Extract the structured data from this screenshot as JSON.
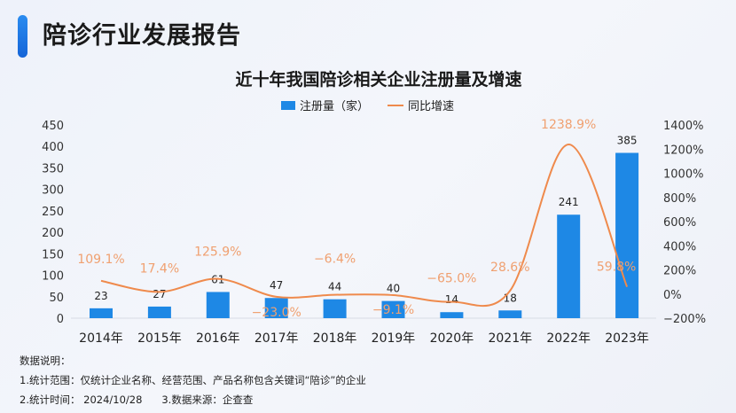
{
  "page": {
    "title": "陪诊行业发展报告",
    "accent_color": "#1e7ae6"
  },
  "chart_data": {
    "type": "bar+line",
    "title": "近十年我国陪诊相关企业注册量及增速",
    "legend_position": "top",
    "categories": [
      "2014年",
      "2015年",
      "2016年",
      "2017年",
      "2018年",
      "2019年",
      "2020年",
      "2021年",
      "2022年",
      "2023年"
    ],
    "series": [
      {
        "name": "注册量（家）",
        "type": "bar",
        "axis": "left",
        "color": "#1e88e5",
        "values": [
          23,
          27,
          61,
          47,
          44,
          40,
          14,
          18,
          241,
          385
        ],
        "labels": [
          "23",
          "27",
          "61",
          "47",
          "44",
          "40",
          "14",
          "18",
          "241",
          "385"
        ]
      },
      {
        "name": "同比增速",
        "type": "line",
        "axis": "right",
        "color": "#ef8a4c",
        "values": [
          109.1,
          17.4,
          125.9,
          -23.0,
          -6.4,
          -9.1,
          -65.0,
          28.6,
          1238.9,
          59.8
        ],
        "labels": [
          "109.1%",
          "17.4%",
          "125.9%",
          "−23.0%",
          "−6.4%",
          "−9.1%",
          "−65.0%",
          "28.6%",
          "1238.9%",
          "59.8%"
        ]
      }
    ],
    "y_left": {
      "range": [
        0,
        450
      ],
      "ticks": [
        "0",
        "50",
        "100",
        "150",
        "200",
        "250",
        "300",
        "350",
        "400",
        "450"
      ]
    },
    "y_right": {
      "range": [
        -200,
        1400
      ],
      "ticks": [
        "−200%",
        "0%",
        "200%",
        "400%",
        "600%",
        "800%",
        "1000%",
        "1200%",
        "1400%"
      ]
    },
    "grid": false
  },
  "notes": {
    "heading": "数据说明：",
    "line1": "1.统计范围：仅统计企业名称、经营范围、产品名称包含关键词“陪诊”的企业",
    "line2": "2.统计时间： 2024/10/28      3.数据来源：企查查"
  }
}
